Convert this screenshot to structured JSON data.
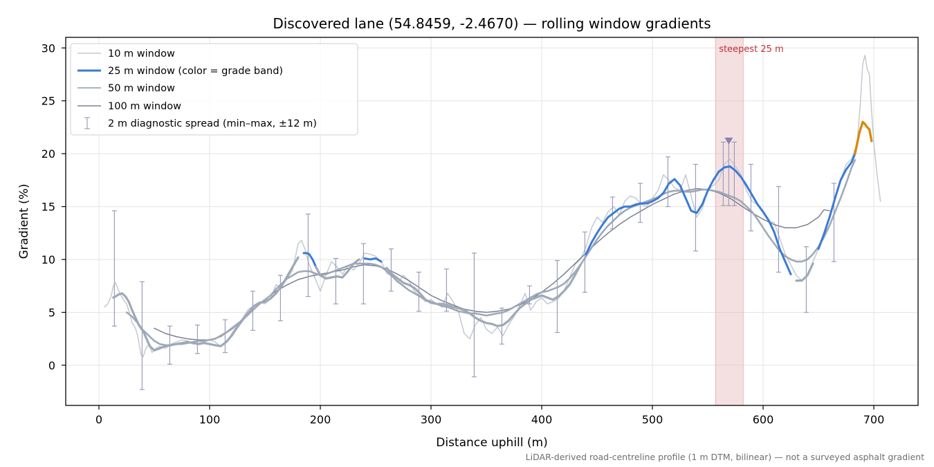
{
  "chart_data": {
    "type": "line",
    "title": "Discovered lane (54.8459, -2.4670) — rolling window gradients",
    "xlabel": "Distance uphill (m)",
    "ylabel": "Gradient (%)",
    "xlim": [
      -30,
      740
    ],
    "ylim": [
      -3.8,
      31
    ],
    "xticks": [
      0,
      100,
      200,
      300,
      400,
      500,
      600,
      700
    ],
    "yticks": [
      0,
      5,
      10,
      15,
      20,
      25,
      30
    ],
    "grid": true,
    "legend_placement": "top-left",
    "footnote": "LiDAR-derived road-centreline profile (1 m DTM, bilinear) — not a surveyed asphalt gradient",
    "colors": {
      "w10": "#c2c9d2",
      "w25_base": "#3a7bd5",
      "w25_steep": "#d98a0c",
      "w50": "#9ea9b7",
      "w100": "#7a808f",
      "errorbar": "#9c9cbb",
      "band": "#e8b4b8",
      "band_label": "#c62f3a",
      "marker": "#8b7fb3"
    },
    "highlight": {
      "label": "steepest 25 m",
      "x_start": 557,
      "x_end": 582,
      "marker_x": 569,
      "marker_y": 21.2
    },
    "series": [
      {
        "key": "w10",
        "name": "10 m window",
        "x": [
          5,
          8,
          11,
          13,
          15,
          18,
          20,
          22,
          25,
          28,
          30,
          33,
          35,
          38,
          40,
          42,
          45,
          48,
          50,
          55,
          60,
          65,
          70,
          75,
          80,
          85,
          90,
          95,
          100,
          105,
          110,
          115,
          120,
          125,
          130,
          135,
          140,
          145,
          150,
          155,
          160,
          165,
          170,
          175,
          180,
          183,
          186,
          190,
          195,
          200,
          205,
          210,
          215,
          220,
          225,
          230,
          235,
          240,
          245,
          250,
          255,
          260,
          265,
          270,
          275,
          280,
          285,
          290,
          295,
          300,
          305,
          310,
          315,
          320,
          325,
          330,
          335,
          340,
          345,
          350,
          355,
          360,
          365,
          370,
          375,
          380,
          385,
          390,
          395,
          400,
          405,
          410,
          415,
          420,
          425,
          430,
          435,
          440,
          445,
          450,
          455,
          460,
          465,
          470,
          475,
          480,
          485,
          490,
          495,
          500,
          505,
          510,
          515,
          520,
          525,
          530,
          535,
          540,
          545,
          550,
          555,
          560,
          565,
          570,
          575,
          580,
          585,
          590,
          595,
          600,
          605,
          610,
          615,
          620,
          625,
          630,
          635,
          640,
          645,
          650,
          655,
          660,
          665,
          670,
          675,
          680,
          685,
          688,
          690,
          692,
          694,
          696,
          698,
          700,
          703,
          706
        ],
        "y": [
          5.5,
          5.8,
          6.5,
          7.5,
          7.8,
          7.0,
          6.6,
          6.2,
          5.8,
          4.8,
          4.0,
          3.5,
          2.8,
          1.0,
          0.8,
          1.5,
          2.0,
          1.2,
          1.5,
          1.8,
          1.6,
          2.0,
          2.2,
          2.4,
          2.3,
          2.0,
          2.1,
          2.2,
          2.4,
          2.2,
          1.8,
          2.2,
          3.0,
          3.8,
          4.5,
          5.3,
          5.6,
          6.0,
          5.8,
          6.3,
          7.6,
          7.4,
          8.2,
          9.0,
          11.5,
          11.8,
          11.0,
          9.5,
          8.3,
          7.0,
          8.5,
          9.8,
          9.3,
          8.6,
          9.4,
          9.0,
          9.6,
          10.6,
          10.5,
          10.3,
          9.8,
          8.7,
          8.4,
          7.8,
          8.5,
          8.0,
          7.0,
          6.5,
          6.0,
          6.2,
          5.8,
          5.5,
          6.8,
          6.0,
          5.0,
          3.0,
          2.5,
          3.8,
          4.5,
          3.4,
          3.0,
          3.6,
          2.8,
          3.8,
          4.6,
          5.6,
          6.8,
          5.2,
          6.0,
          6.4,
          5.8,
          6.0,
          6.3,
          7.0,
          8.2,
          9.5,
          10.0,
          11.2,
          13.0,
          14.0,
          13.5,
          14.5,
          15.0,
          14.2,
          15.5,
          16.0,
          15.8,
          15.2,
          15.0,
          15.8,
          16.5,
          18.0,
          17.5,
          16.8,
          16.5,
          18.0,
          16.0,
          14.0,
          14.8,
          16.5,
          17.0,
          17.5,
          19.0,
          19.5,
          18.8,
          18.0,
          16.5,
          15.5,
          15.2,
          14.5,
          13.6,
          13.5,
          12.0,
          10.5,
          9.5,
          8.5,
          8.0,
          8.5,
          9.8,
          11.0,
          12.5,
          14.0,
          15.8,
          17.5,
          19.0,
          19.5,
          21.0,
          25.0,
          28.5,
          29.3,
          28.0,
          27.5,
          24.0,
          21.0,
          18.0,
          15.5
        ]
      },
      {
        "key": "w25",
        "name": "25 m window (color = grade band)",
        "x": [
          13,
          15,
          18,
          21,
          24,
          27,
          30,
          33,
          36,
          40,
          43,
          46,
          50,
          55,
          60,
          65,
          70,
          75,
          80,
          85,
          90,
          95,
          100,
          105,
          110,
          115,
          120,
          125,
          130,
          135,
          140,
          145,
          150,
          155,
          160,
          165,
          170,
          175,
          180,
          185,
          188,
          190,
          193,
          196,
          200,
          205,
          210,
          215,
          220,
          225,
          230,
          235,
          240,
          245,
          250,
          255,
          260,
          265,
          270,
          275,
          280,
          285,
          290,
          295,
          300,
          305,
          310,
          315,
          320,
          325,
          330,
          335,
          340,
          345,
          350,
          355,
          360,
          365,
          370,
          375,
          380,
          385,
          390,
          395,
          400,
          405,
          410,
          415,
          420,
          425,
          430,
          435,
          440,
          445,
          450,
          455,
          460,
          465,
          470,
          475,
          480,
          485,
          490,
          495,
          500,
          505,
          510,
          515,
          520,
          525,
          530,
          535,
          540,
          545,
          550,
          555,
          560,
          565,
          570,
          575,
          580,
          585,
          590,
          595,
          600,
          605,
          610,
          615,
          620,
          625,
          630,
          635,
          640,
          645,
          650,
          655,
          660,
          665,
          670,
          675,
          680,
          683,
          685,
          687,
          690,
          692,
          694,
          696,
          698
        ],
        "y": [
          6.4,
          6.5,
          6.7,
          6.8,
          6.5,
          6.0,
          5.2,
          4.5,
          3.8,
          3.2,
          2.5,
          1.8,
          1.4,
          1.6,
          1.8,
          1.9,
          2.0,
          2.1,
          2.2,
          2.1,
          2.0,
          2.1,
          2.0,
          1.9,
          1.8,
          2.2,
          2.8,
          3.6,
          4.3,
          5.0,
          5.6,
          5.9,
          6.0,
          6.3,
          6.8,
          7.5,
          8.4,
          9.3,
          10.2,
          10.6,
          10.6,
          10.5,
          10.0,
          9.3,
          8.5,
          8.2,
          8.3,
          8.4,
          8.3,
          8.9,
          9.6,
          10.0,
          10.1,
          10.0,
          10.1,
          9.8,
          9.2,
          8.6,
          8.2,
          7.8,
          7.6,
          7.3,
          6.8,
          6.2,
          5.9,
          5.8,
          5.8,
          5.7,
          5.5,
          5.4,
          5.2,
          4.9,
          4.5,
          4.2,
          4.0,
          3.9,
          3.7,
          3.8,
          4.2,
          4.8,
          5.4,
          5.8,
          6.2,
          6.4,
          6.6,
          6.4,
          6.2,
          6.5,
          7.0,
          7.6,
          8.5,
          9.5,
          10.5,
          11.6,
          12.5,
          13.3,
          14.0,
          14.4,
          14.8,
          15.0,
          15.0,
          15.2,
          15.3,
          15.3,
          15.5,
          15.8,
          16.3,
          17.2,
          17.6,
          17.0,
          15.8,
          14.6,
          14.4,
          15.2,
          16.5,
          17.5,
          18.3,
          18.7,
          18.8,
          18.4,
          17.8,
          17.0,
          16.1,
          15.2,
          14.5,
          13.7,
          12.6,
          11.0,
          9.8,
          8.6,
          8.0,
          8.0,
          8.5,
          9.6,
          11.0,
          12.4,
          14.0,
          15.8,
          17.5,
          18.5,
          19.2,
          20.0,
          21.0,
          22.0,
          23.0,
          22.8,
          22.5,
          22.3,
          21.2
        ],
        "segments": [
          {
            "from": 13,
            "to": 182,
            "band": "base"
          },
          {
            "from": 182,
            "to": 196,
            "band": "steep"
          },
          {
            "from": 196,
            "to": 236,
            "band": "base"
          },
          {
            "from": 236,
            "to": 258,
            "band": "steep"
          },
          {
            "from": 258,
            "to": 438,
            "band": "base"
          },
          {
            "from": 438,
            "to": 628,
            "band": "steep"
          },
          {
            "from": 628,
            "to": 648,
            "band": "base"
          },
          {
            "from": 648,
            "to": 683,
            "band": "steep"
          },
          {
            "from": 683,
            "to": 698,
            "band": "steepest"
          }
        ]
      },
      {
        "key": "w50",
        "name": "50 m window",
        "x": [
          25,
          30,
          35,
          40,
          45,
          50,
          55,
          60,
          65,
          70,
          75,
          80,
          85,
          90,
          95,
          100,
          105,
          110,
          115,
          120,
          125,
          130,
          135,
          140,
          145,
          150,
          155,
          160,
          165,
          170,
          175,
          180,
          185,
          190,
          195,
          200,
          205,
          210,
          215,
          220,
          225,
          230,
          235,
          240,
          245,
          250,
          255,
          260,
          265,
          270,
          275,
          280,
          285,
          290,
          295,
          300,
          305,
          310,
          315,
          320,
          325,
          330,
          335,
          340,
          345,
          350,
          355,
          360,
          365,
          370,
          375,
          380,
          385,
          390,
          395,
          400,
          405,
          410,
          415,
          420,
          425,
          430,
          435,
          440,
          445,
          450,
          455,
          460,
          465,
          470,
          475,
          480,
          485,
          490,
          495,
          500,
          505,
          510,
          515,
          520,
          525,
          530,
          535,
          540,
          545,
          550,
          555,
          560,
          565,
          570,
          575,
          580,
          585,
          590,
          595,
          600,
          605,
          610,
          615,
          620,
          625,
          630,
          635,
          640,
          645,
          650,
          655,
          660,
          665,
          670,
          675,
          680,
          683
        ],
        "y": [
          5.0,
          4.6,
          4.0,
          3.3,
          2.8,
          2.3,
          2.0,
          1.9,
          1.9,
          2.0,
          2.0,
          2.1,
          2.2,
          2.3,
          2.3,
          2.4,
          2.5,
          2.8,
          3.1,
          3.5,
          3.9,
          4.3,
          4.8,
          5.3,
          5.8,
          6.2,
          6.6,
          7.2,
          7.7,
          8.2,
          8.5,
          8.8,
          8.9,
          8.9,
          8.7,
          8.5,
          8.6,
          8.8,
          9.0,
          9.2,
          9.4,
          9.6,
          9.6,
          9.6,
          9.6,
          9.5,
          9.3,
          8.9,
          8.4,
          7.9,
          7.5,
          7.1,
          6.8,
          6.5,
          6.2,
          6.0,
          5.8,
          5.6,
          5.5,
          5.3,
          5.1,
          5.0,
          4.9,
          4.9,
          4.8,
          4.7,
          4.8,
          4.9,
          5.0,
          5.2,
          5.5,
          5.8,
          6.1,
          6.4,
          6.7,
          6.9,
          7.0,
          7.2,
          7.4,
          7.7,
          8.2,
          8.8,
          9.5,
          10.3,
          11.1,
          11.9,
          12.6,
          13.2,
          13.7,
          14.2,
          14.6,
          14.9,
          15.1,
          15.3,
          15.5,
          15.7,
          15.9,
          16.2,
          16.4,
          16.5,
          16.5,
          16.4,
          16.4,
          16.5,
          16.6,
          16.6,
          16.5,
          16.4,
          16.2,
          16.0,
          15.8,
          15.5,
          15.0,
          14.5,
          13.8,
          13.0,
          12.2,
          11.5,
          10.8,
          10.3,
          10.0,
          9.8,
          9.8,
          10.0,
          10.5,
          11.2,
          12.1,
          13.2,
          14.5,
          15.8,
          17.2,
          18.7,
          19.4
        ]
      },
      {
        "key": "w100",
        "name": "100 m window",
        "x": [
          50,
          60,
          70,
          80,
          90,
          100,
          110,
          120,
          130,
          140,
          150,
          160,
          170,
          180,
          190,
          200,
          210,
          220,
          230,
          240,
          250,
          260,
          270,
          280,
          290,
          300,
          310,
          320,
          330,
          340,
          350,
          360,
          370,
          380,
          390,
          400,
          410,
          420,
          430,
          440,
          450,
          460,
          470,
          480,
          490,
          500,
          510,
          520,
          530,
          540,
          550,
          560,
          570,
          580,
          590,
          600,
          610,
          620,
          630,
          640,
          650,
          655,
          660
        ],
        "y": [
          3.5,
          3.0,
          2.7,
          2.5,
          2.4,
          2.4,
          2.7,
          3.4,
          4.3,
          5.3,
          6.2,
          7.0,
          7.6,
          8.1,
          8.4,
          8.6,
          8.8,
          9.0,
          9.3,
          9.5,
          9.4,
          9.1,
          8.6,
          8.0,
          7.3,
          6.6,
          6.1,
          5.7,
          5.3,
          5.1,
          5.0,
          5.1,
          5.3,
          5.7,
          6.2,
          6.9,
          7.7,
          8.6,
          9.6,
          10.6,
          11.6,
          12.5,
          13.3,
          14.0,
          14.6,
          15.2,
          15.7,
          16.2,
          16.5,
          16.7,
          16.6,
          16.3,
          15.8,
          15.1,
          14.4,
          13.8,
          13.3,
          13.0,
          13.0,
          13.3,
          14.0,
          14.7,
          14.6
        ]
      }
    ],
    "diagnostic_spread": {
      "name": "2 m diagnostic spread (min–max, ±12 m)",
      "x": [
        14,
        39,
        64,
        89,
        114,
        139,
        164,
        189,
        214,
        239,
        264,
        289,
        314,
        339,
        364,
        389,
        414,
        439,
        464,
        489,
        514,
        539,
        564,
        569,
        574,
        589,
        614,
        639,
        664
      ],
      "low": [
        3.7,
        -2.3,
        0.1,
        1.1,
        1.2,
        3.3,
        4.2,
        6.5,
        5.8,
        5.8,
        7.0,
        5.1,
        5.1,
        -1.1,
        2.0,
        5.8,
        3.1,
        6.9,
        12.9,
        13.5,
        15.0,
        10.8,
        15.1,
        15.1,
        15.1,
        12.7,
        8.8,
        5.0,
        9.8
      ],
      "high": [
        14.6,
        7.9,
        3.7,
        3.8,
        4.3,
        7.0,
        8.5,
        14.3,
        10.1,
        11.5,
        11.0,
        8.8,
        9.1,
        10.6,
        5.4,
        7.5,
        9.9,
        12.6,
        15.9,
        17.2,
        19.7,
        19.0,
        21.1,
        21.2,
        21.1,
        19.0,
        16.9,
        11.2,
        17.2
      ]
    }
  }
}
